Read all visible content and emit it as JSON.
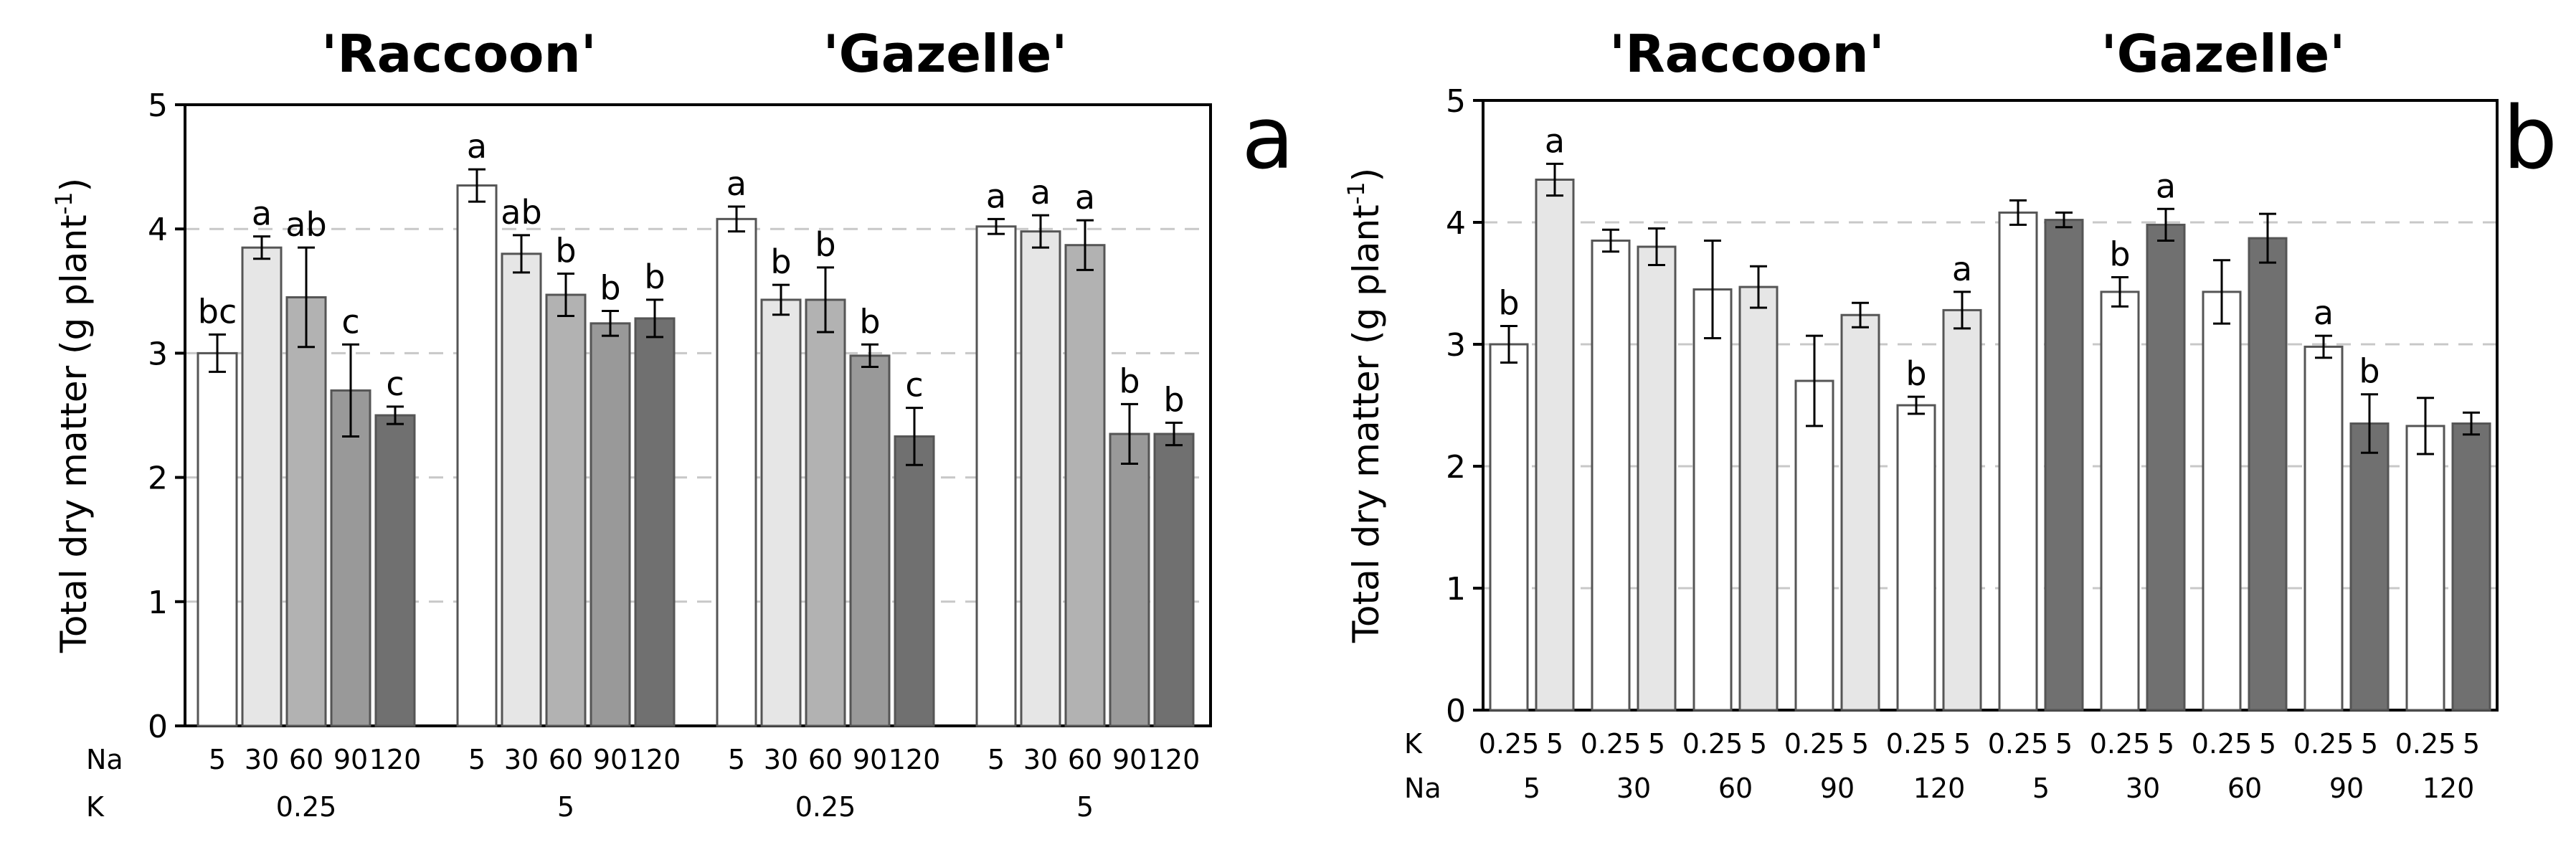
{
  "colors": {
    "background": "#ffffff",
    "axis": "#000000",
    "grid": "#c8c8c8",
    "bar_edge": "#555555",
    "Na5": "#ffffff",
    "Na30": "#e6e6e6",
    "Na60": "#b2b2b2",
    "Na90": "#999999",
    "Na120": "#707070",
    "K0.25": "#ffffff",
    "K5_Raccoon": "#e6e6e6",
    "K5_Gazelle": "#707070"
  },
  "chart_data": [
    {
      "type": "bar",
      "panel": "a",
      "panel_label": "a",
      "title_labels": [
        "'Raccoon'",
        "'Gazelle'"
      ],
      "ylabel": "Total dry matter (g plant",
      "ylabel_sup": "-1",
      "ylabel_close": ")",
      "ylim": [
        0,
        5
      ],
      "yticks": [
        "0",
        "1",
        "2",
        "3",
        "4",
        "5"
      ],
      "grid": "horizontal dashed",
      "row_labels": [
        "Na",
        "K"
      ],
      "groups": [
        {
          "cultivar": "Raccoon",
          "K": "0.25",
          "Na": [
            "5",
            "30",
            "60",
            "90",
            "120"
          ],
          "values": [
            3.0,
            3.85,
            3.45,
            2.7,
            2.5
          ],
          "errors": [
            0.15,
            0.09,
            0.4,
            0.37,
            0.07
          ],
          "letters": [
            "bc",
            "a",
            "ab",
            "c",
            "c"
          ]
        },
        {
          "cultivar": "Raccoon",
          "K": "5",
          "Na": [
            "5",
            "30",
            "60",
            "90",
            "120"
          ],
          "values": [
            4.35,
            3.8,
            3.47,
            3.24,
            3.28
          ],
          "errors": [
            0.13,
            0.15,
            0.17,
            0.1,
            0.15
          ],
          "letters": [
            "a",
            "ab",
            "b",
            "b",
            "b"
          ]
        },
        {
          "cultivar": "Gazelle",
          "K": "0.25",
          "Na": [
            "5",
            "30",
            "60",
            "90",
            "120"
          ],
          "values": [
            4.08,
            3.43,
            3.43,
            2.98,
            2.33
          ],
          "errors": [
            0.1,
            0.12,
            0.26,
            0.09,
            0.23
          ],
          "letters": [
            "a",
            "b",
            "b",
            "b",
            "c"
          ]
        },
        {
          "cultivar": "Gazelle",
          "K": "5",
          "Na": [
            "5",
            "30",
            "60",
            "90",
            "120"
          ],
          "values": [
            4.02,
            3.98,
            3.87,
            2.35,
            2.35
          ],
          "errors": [
            0.06,
            0.13,
            0.2,
            0.24,
            0.09
          ],
          "letters": [
            "a",
            "a",
            "a",
            "b",
            "b"
          ]
        }
      ]
    },
    {
      "type": "bar",
      "panel": "b",
      "panel_label": "b",
      "title_labels": [
        "'Raccoon'",
        "'Gazelle'"
      ],
      "ylabel": "Total dry matter (g plant",
      "ylabel_sup": "-1",
      "ylabel_close": ")",
      "ylim": [
        0,
        5
      ],
      "yticks": [
        "0",
        "1",
        "2",
        "3",
        "4",
        "5"
      ],
      "grid": "horizontal dashed",
      "row_labels": [
        "K",
        "Na"
      ],
      "groups": [
        {
          "cultivar": "Raccoon",
          "Na": "5",
          "K": [
            "0.25",
            "5"
          ],
          "values": [
            3.0,
            4.35
          ],
          "errors": [
            0.15,
            0.13
          ],
          "letters": [
            "b",
            "a"
          ]
        },
        {
          "cultivar": "Raccoon",
          "Na": "30",
          "K": [
            "0.25",
            "5"
          ],
          "values": [
            3.85,
            3.8
          ],
          "errors": [
            0.09,
            0.15
          ],
          "letters": [
            "",
            ""
          ]
        },
        {
          "cultivar": "Raccoon",
          "Na": "60",
          "K": [
            "0.25",
            "5"
          ],
          "values": [
            3.45,
            3.47
          ],
          "errors": [
            0.4,
            0.17
          ],
          "letters": [
            "",
            ""
          ]
        },
        {
          "cultivar": "Raccoon",
          "Na": "90",
          "K": [
            "0.25",
            "5"
          ],
          "values": [
            2.7,
            3.24
          ],
          "errors": [
            0.37,
            0.1
          ],
          "letters": [
            "",
            ""
          ]
        },
        {
          "cultivar": "Raccoon",
          "Na": "120",
          "K": [
            "0.25",
            "5"
          ],
          "values": [
            2.5,
            3.28
          ],
          "errors": [
            0.07,
            0.15
          ],
          "letters": [
            "b",
            "a"
          ]
        },
        {
          "cultivar": "Gazelle",
          "Na": "5",
          "K": [
            "0.25",
            "5"
          ],
          "values": [
            4.08,
            4.02
          ],
          "errors": [
            0.1,
            0.06
          ],
          "letters": [
            "",
            ""
          ]
        },
        {
          "cultivar": "Gazelle",
          "Na": "30",
          "K": [
            "0.25",
            "5"
          ],
          "values": [
            3.43,
            3.98
          ],
          "errors": [
            0.12,
            0.13
          ],
          "letters": [
            "b",
            "a"
          ]
        },
        {
          "cultivar": "Gazelle",
          "Na": "60",
          "K": [
            "0.25",
            "5"
          ],
          "values": [
            3.43,
            3.87
          ],
          "errors": [
            0.26,
            0.2
          ],
          "letters": [
            "",
            ""
          ]
        },
        {
          "cultivar": "Gazelle",
          "Na": "90",
          "K": [
            "0.25",
            "5"
          ],
          "values": [
            2.98,
            2.35
          ],
          "errors": [
            0.09,
            0.24
          ],
          "letters": [
            "a",
            "b"
          ]
        },
        {
          "cultivar": "Gazelle",
          "Na": "120",
          "K": [
            "0.25",
            "5"
          ],
          "values": [
            2.33,
            2.35
          ],
          "errors": [
            0.23,
            0.09
          ],
          "letters": [
            "",
            ""
          ]
        }
      ]
    }
  ]
}
